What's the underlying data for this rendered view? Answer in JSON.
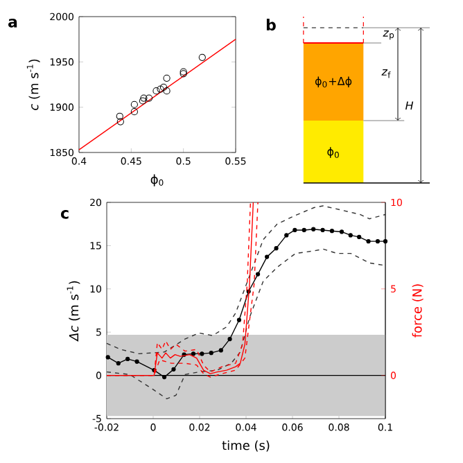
{
  "chart_data": [
    {
      "type": "scatter",
      "title": "a",
      "xlabel": "ϕ$_{0}$",
      "ylabel": "*c* (m s$^{-1}$)",
      "xlim": [
        0.4,
        0.55
      ],
      "xticks": [
        0.4,
        0.45,
        0.5,
        0.55
      ],
      "ylim": [
        1850,
        2000
      ],
      "yticks": [
        1850,
        1900,
        1950,
        2000
      ],
      "marker": "circle",
      "series": [
        {
          "color": "#000000",
          "x": [
            0.439,
            0.4397,
            0.453,
            0.453,
            0.461,
            0.462,
            0.467,
            0.474,
            0.478,
            0.484,
            0.484,
            0.481,
            0.5,
            0.5,
            0.518
          ],
          "values": [
            1890,
            1884,
            1903,
            1895,
            1907,
            1910,
            1910,
            1918,
            1920,
            1932,
            1918,
            1922,
            1937,
            1939,
            1955
          ]
        },
        {
          "type": "line",
          "marker": "none",
          "color": "#ff0000",
          "x": [
            0.4,
            0.55
          ],
          "values": [
            1853,
            1975
          ]
        }
      ]
    },
    {
      "type": "other",
      "title": "b",
      "annotations": [
        "ϕ$_{0}$+Δϕ",
        "ϕ$_{0}$",
        "*z*$_{p}$",
        "*z*$_{f}$",
        "*H*"
      ]
    },
    {
      "type": "line",
      "title": "c",
      "xlabel": "time (s)",
      "ylabel": "*Δc* (m s$^{-1}$)",
      "y2label": "force (N)",
      "xlim": [
        -0.02,
        0.1
      ],
      "xticks": [
        -0.02,
        0,
        0.02,
        0.04,
        0.06,
        0.08,
        0.1
      ],
      "ylim": [
        -5,
        20
      ],
      "yticks": [
        -5,
        0,
        5,
        10,
        15,
        20
      ],
      "y2lim": [
        -2.5,
        10
      ],
      "y2ticks": [
        0,
        5,
        10
      ],
      "bands": [
        {
          "axis": "y",
          "from": -4.7,
          "to": 4.7,
          "color": "#cccccc"
        }
      ],
      "ref_lines": [
        {
          "axis": "y",
          "value": 0,
          "color": "#000000"
        }
      ],
      "series": [
        {
          "color": "#333333",
          "marker": "none",
          "line_style": "dashed",
          "x": [
            -0.02,
            -0.014,
            -0.0061,
            0.0048,
            0.0137,
            0.0197,
            0.0256,
            0.0316,
            0.0355,
            0.0415,
            0.0474,
            0.0534,
            0.0613,
            0.0693,
            0.0732,
            0.0812,
            0.0891,
            0.0931,
            0.1
          ],
          "values": [
            3.7,
            3.0,
            2.5,
            2.7,
            4.2,
            4.9,
            4.6,
            5.6,
            7.2,
            11.5,
            15.7,
            17.5,
            18.5,
            19.4,
            19.6,
            19.1,
            18.6,
            18.1,
            18.6
          ]
        },
        {
          "color": "#333333",
          "marker": "none",
          "line_style": "dashed",
          "x": [
            -0.02,
            -0.0101,
            0.0004,
            0.0058,
            0.0098,
            0.0137,
            0.0197,
            0.0276,
            0.0336,
            0.0375,
            0.0415,
            0.0474,
            0.0534,
            0.0613,
            0.0693,
            0.0732,
            0.0792,
            0.0851,
            0.0931,
            0.1
          ],
          "values": [
            0.4,
            0.1,
            -1.7,
            -2.7,
            -2.3,
            0.1,
            0.4,
            0.6,
            1.4,
            2.7,
            6.7,
            10.9,
            12.5,
            14.1,
            14.4,
            14.6,
            14.1,
            14.1,
            13.0,
            12.7
          ]
        },
        {
          "color": "#000000",
          "marker": "circle",
          "line_style": "solid",
          "x": [
            -0.0195,
            -0.015,
            -0.011,
            -0.007,
            0.0004,
            0.0048,
            0.0088,
            0.0133,
            0.0173,
            0.021,
            0.025,
            0.0292,
            0.033,
            0.037,
            0.0411,
            0.0451,
            0.049,
            0.053,
            0.0574,
            0.061,
            0.065,
            0.069,
            0.073,
            0.077,
            0.0812,
            0.085,
            0.0887,
            0.0927,
            0.0967,
            0.1
          ],
          "values": [
            2.1,
            1.4,
            1.9,
            1.6,
            0.6,
            -0.2,
            0.7,
            2.4,
            2.5,
            2.5,
            2.6,
            2.9,
            4.2,
            6.4,
            9.7,
            11.7,
            13.7,
            14.7,
            16.2,
            16.8,
            16.8,
            16.9,
            16.8,
            16.7,
            16.6,
            16.2,
            16.0,
            15.5,
            15.5,
            15.5
          ]
        },
        {
          "axis": "y2",
          "color": "#ff0000",
          "marker": "none",
          "line_style": "dashed",
          "x": [
            -0.02,
            0.0004,
            0.0018,
            0.0038,
            0.0054,
            0.0074,
            0.0098,
            0.0137,
            0.0187,
            0.0217,
            0.0246,
            0.0296,
            0.0355,
            0.0385,
            0.0405,
            0.0419
          ],
          "values": [
            0,
            0,
            1.9,
            1.5,
            2.0,
            1.5,
            1.8,
            1.4,
            1.5,
            0.6,
            0.2,
            0.5,
            0.7,
            1.8,
            5.3,
            10
          ]
        },
        {
          "axis": "y2",
          "color": "#ff0000",
          "marker": "none",
          "line_style": "dashed",
          "x": [
            -0.02,
            0.0004,
            0.0028,
            0.0078,
            0.0137,
            0.0187,
            0.0217,
            0.0246,
            0.0296,
            0.0355,
            0.0395,
            0.0435,
            0.0451
          ],
          "values": [
            0,
            0,
            0.9,
            0.7,
            0.7,
            0.6,
            0.1,
            -0.1,
            0.1,
            0.3,
            1.0,
            5.3,
            10
          ]
        },
        {
          "axis": "y2",
          "color": "#ff0000",
          "marker": "none",
          "line_style": "solid",
          "x": [
            -0.02,
            0.0004,
            0.0018,
            0.0038,
            0.0054,
            0.0074,
            0.0094,
            0.0117,
            0.0157,
            0.0187,
            0.0217,
            0.0246,
            0.0276,
            0.0316,
            0.0355,
            0.0375,
            0.0395,
            0.0415,
            0.0431
          ],
          "values": [
            0,
            0,
            1.3,
            1.0,
            1.3,
            1.0,
            1.2,
            1.1,
            1.2,
            1.0,
            0.3,
            0.1,
            0.2,
            0.3,
            0.5,
            0.7,
            1.8,
            5.3,
            10
          ]
        }
      ]
    }
  ]
}
